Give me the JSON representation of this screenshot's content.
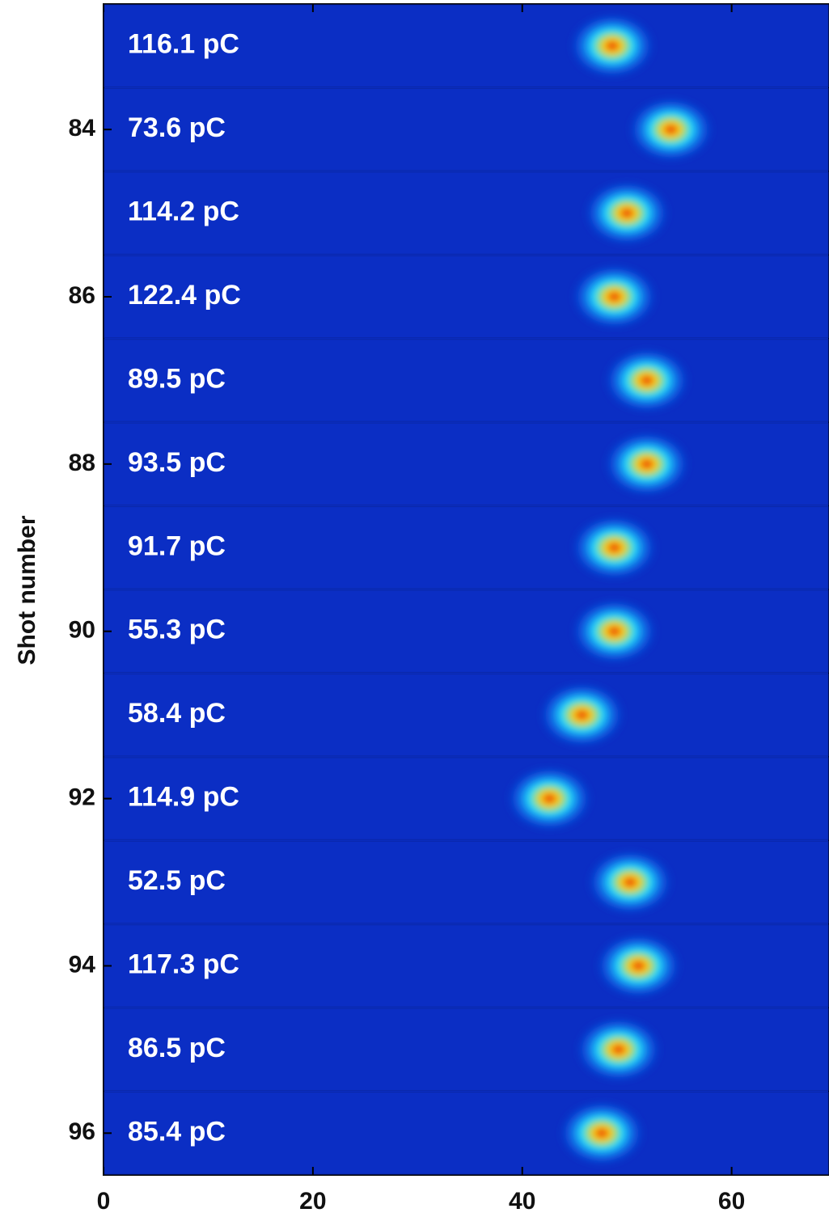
{
  "chart_data": {
    "type": "image-stack",
    "ylabel": "Shot number",
    "y": [
      83,
      84,
      85,
      86,
      87,
      88,
      89,
      90,
      91,
      92,
      93,
      94,
      95,
      96
    ],
    "x": [
      48.6,
      54.2,
      50.0,
      48.8,
      51.9,
      51.9,
      48.8,
      48.8,
      45.7,
      42.6,
      50.3,
      51.1,
      49.2,
      47.6
    ],
    "labels": [
      "116.1 pC",
      "73.6 pC",
      "114.2 pC",
      "122.4 pC",
      "89.5 pC",
      "93.5 pC",
      "91.7 pC",
      "55.3 pC",
      "58.4 pC",
      "114.9 pC",
      "52.5 pC",
      "117.3 pC",
      "86.5 pC",
      "85.4 pC"
    ],
    "xlim": [
      0,
      69.3
    ],
    "xticks": [
      0,
      20,
      40,
      60
    ],
    "ylim": [
      82.5,
      96.5
    ],
    "yticks": [
      84,
      86,
      88,
      90,
      92,
      94,
      96
    ],
    "background": "#0b2ec4"
  }
}
